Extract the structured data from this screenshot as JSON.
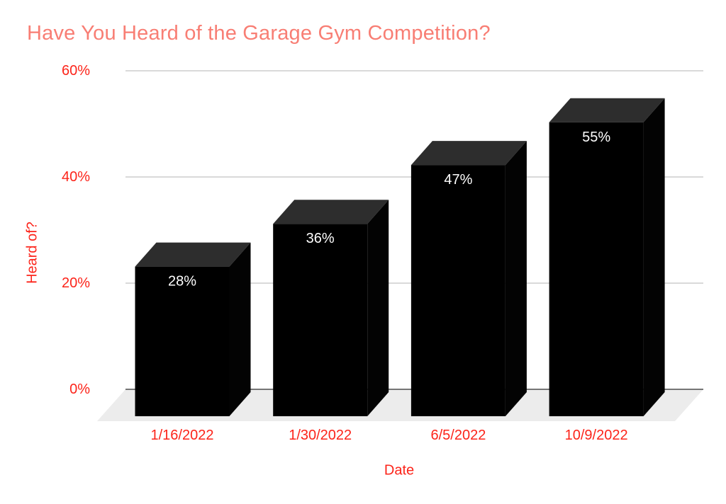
{
  "chart_data": {
    "type": "bar",
    "style": "3d-column",
    "title": "Have You Heard of the Garage Gym Competition?",
    "xlabel": "Date",
    "ylabel": "Heard of?",
    "categories": [
      "1/16/2022",
      "1/30/2022",
      "6/5/2022",
      "10/9/2022"
    ],
    "values": [
      28,
      36,
      47,
      55
    ],
    "value_labels": [
      "28%",
      "36%",
      "47%",
      "55%"
    ],
    "yticks": [
      0,
      20,
      40,
      60
    ],
    "ytick_labels": [
      "0%",
      "20%",
      "40%",
      "60%"
    ],
    "ylim": [
      0,
      60
    ],
    "grid": true,
    "legend": "none",
    "colors": {
      "title": "#f87e74",
      "axis_label": "#fc241a",
      "bar_front": "#000000",
      "bar_side": "#030303",
      "bar_top": "#2d2d2d",
      "value_label": "#ffffff",
      "gridline": "#d9d9d9",
      "baseline": "#757575",
      "floor": "#ececec",
      "background": "#ffffff"
    }
  }
}
